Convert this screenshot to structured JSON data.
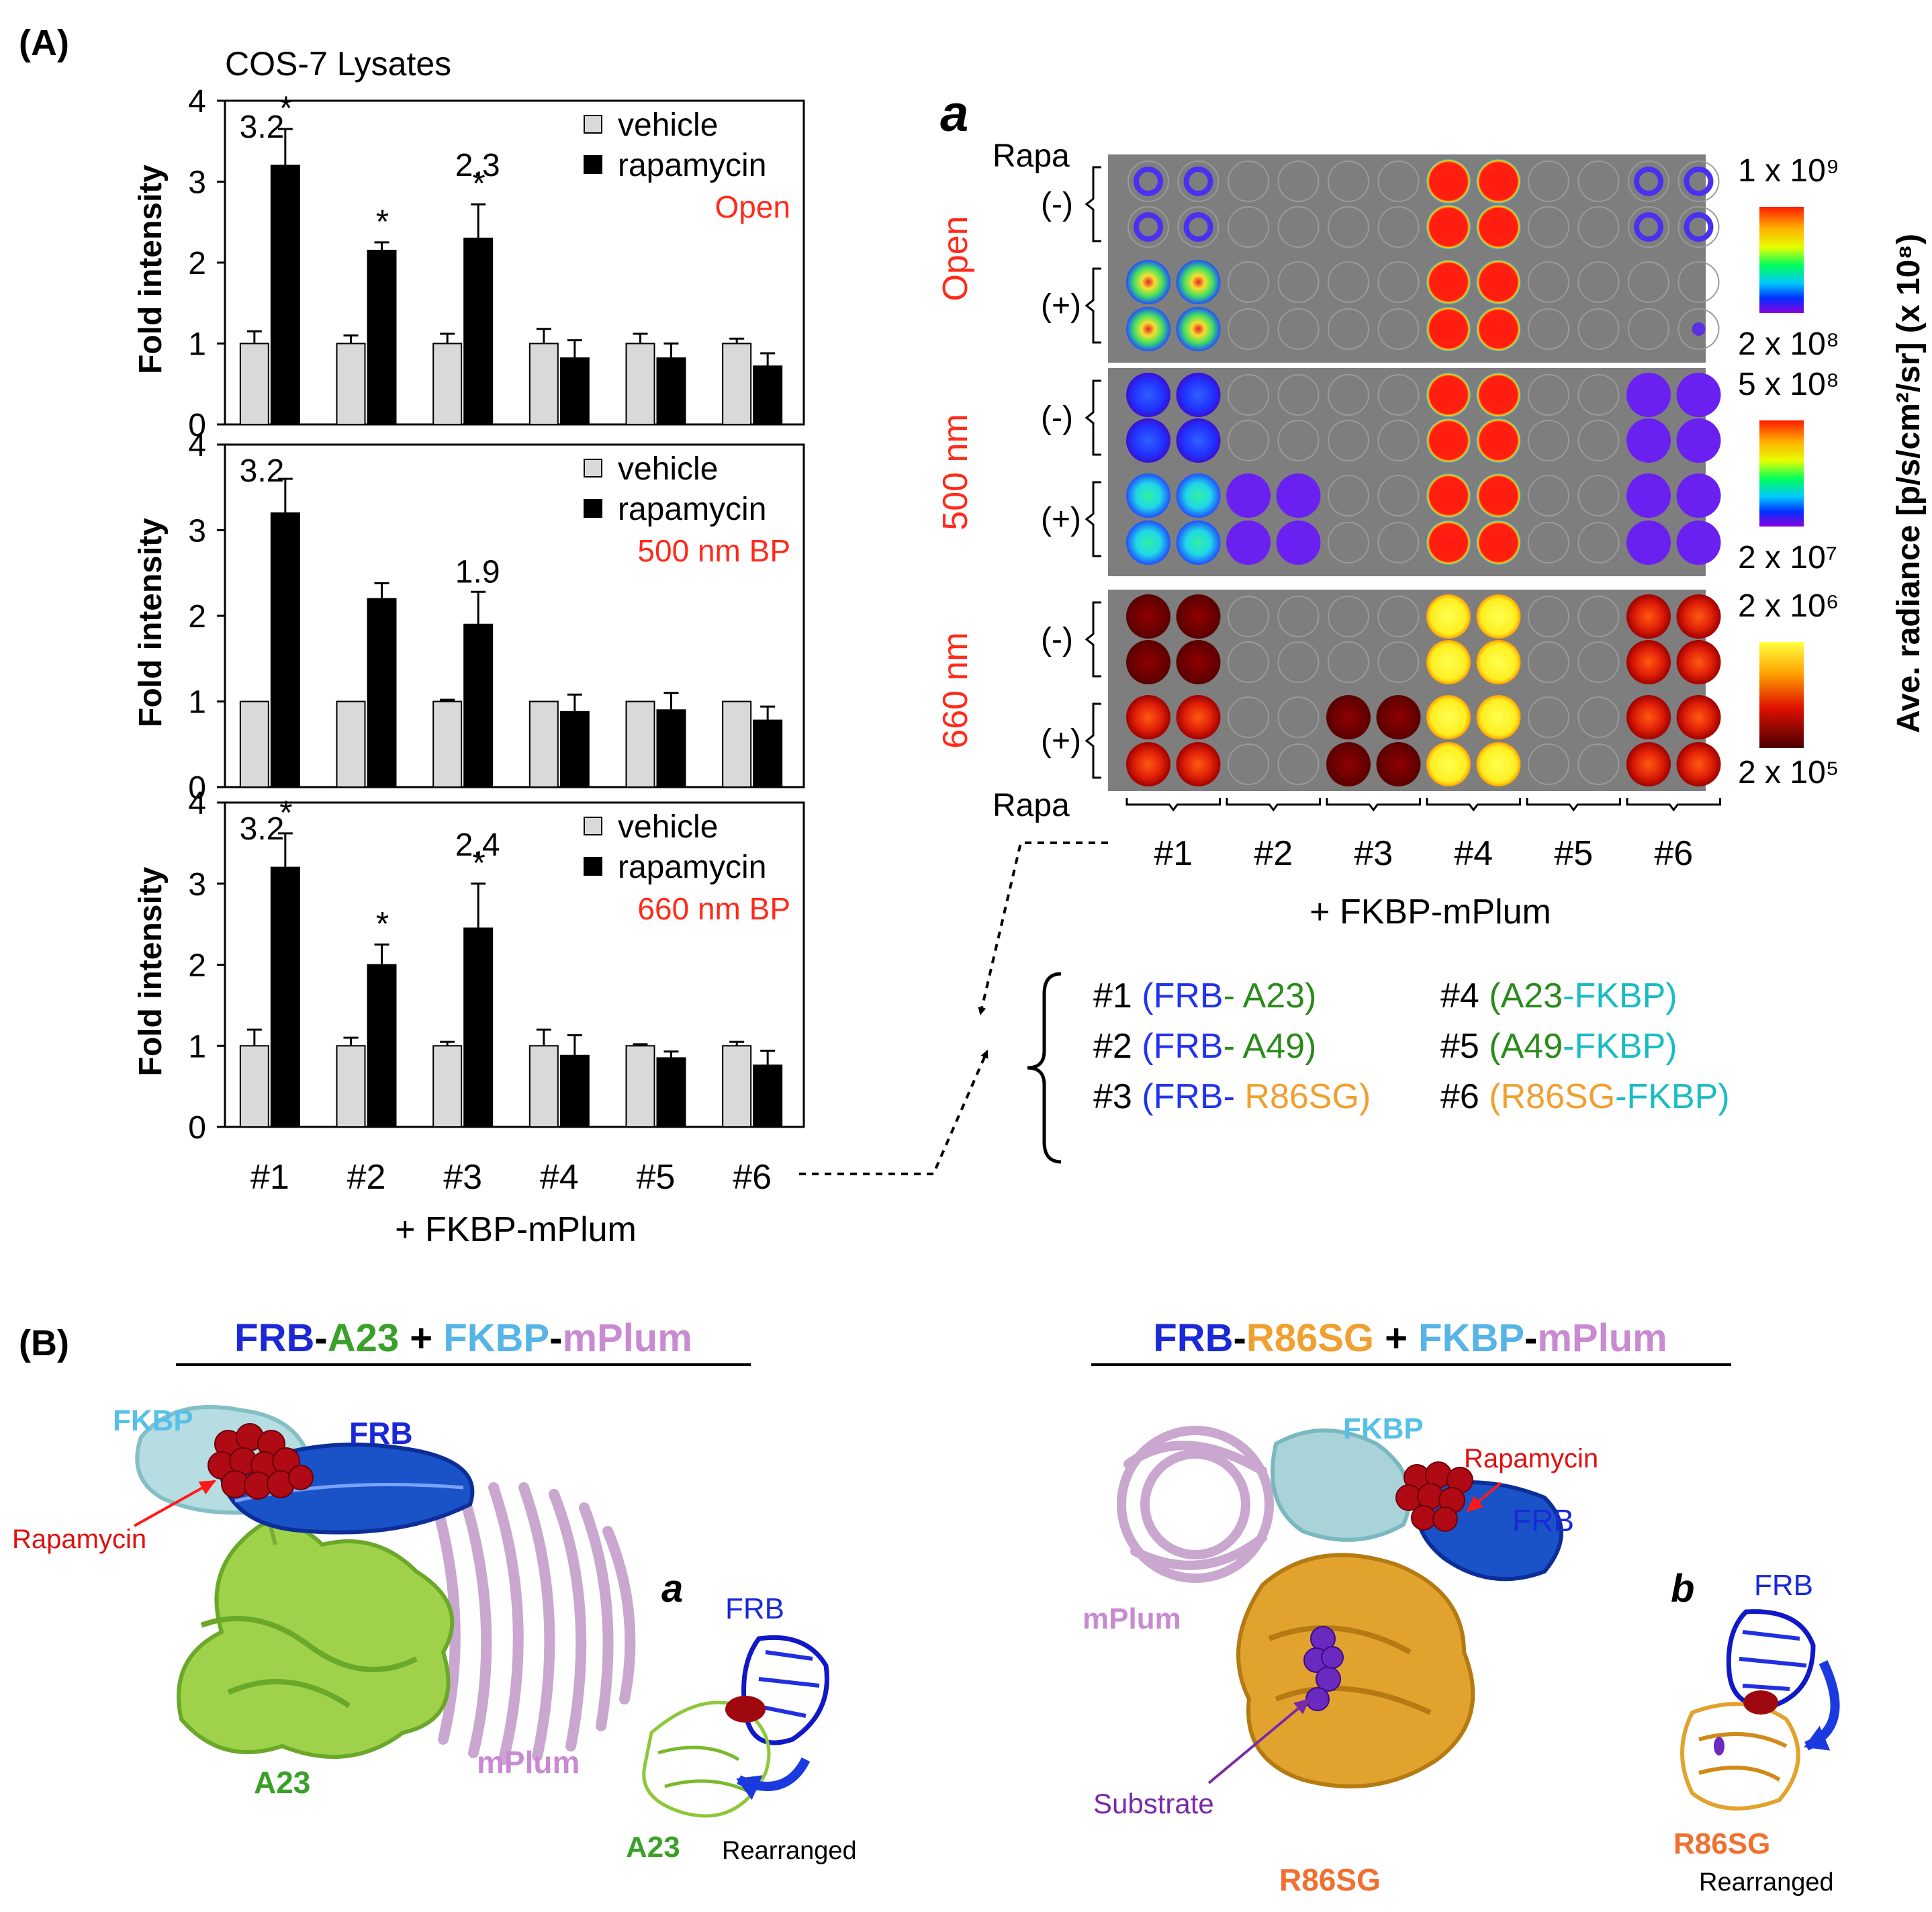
{
  "panel_A": {
    "label": "(A)",
    "title": "COS-7  Lysates",
    "ylabel": "Fold intensity",
    "xlabel": "+ FKBP-mPlum",
    "legend": {
      "vehicle": "vehicle",
      "rapamycin": "rapamycin"
    },
    "colors": {
      "vehicle": "#d9d9d9",
      "rapamycin": "#000000",
      "accent": "#ff2a1a"
    }
  },
  "chart_data": [
    {
      "type": "bar",
      "condition_label": "Open",
      "categories": [
        "#1",
        "#2",
        "#3",
        "#4",
        "#5",
        "#6"
      ],
      "ylim": [
        0,
        4
      ],
      "yticks": [
        0,
        1,
        2,
        3,
        4
      ],
      "series": [
        {
          "name": "vehicle",
          "values": [
            1.0,
            1.0,
            1.0,
            1.0,
            1.0,
            1.0
          ],
          "errors": [
            0.15,
            0.1,
            0.12,
            0.18,
            0.12,
            0.06
          ]
        },
        {
          "name": "rapamycin",
          "values": [
            3.2,
            2.15,
            2.3,
            0.82,
            0.82,
            0.72
          ],
          "errors": [
            0.45,
            0.1,
            0.42,
            0.22,
            0.18,
            0.16
          ]
        }
      ],
      "annotations": [
        {
          "category": "#1",
          "value_label": "3.2",
          "mark": "*"
        },
        {
          "category": "#2",
          "value_label": "",
          "mark": "*"
        },
        {
          "category": "#3",
          "value_label": "2.3",
          "mark": "*"
        }
      ]
    },
    {
      "type": "bar",
      "condition_label": "500 nm BP",
      "categories": [
        "#1",
        "#2",
        "#3",
        "#4",
        "#5",
        "#6"
      ],
      "ylim": [
        0,
        4
      ],
      "yticks": [
        0,
        1,
        2,
        3,
        4
      ],
      "series": [
        {
          "name": "vehicle",
          "values": [
            1.0,
            1.0,
            1.0,
            1.0,
            1.0,
            1.0
          ],
          "errors": [
            0,
            0,
            0.02,
            0,
            0,
            0
          ]
        },
        {
          "name": "rapamycin",
          "values": [
            3.2,
            2.2,
            1.9,
            0.88,
            0.9,
            0.78
          ],
          "errors": [
            0.4,
            0.18,
            0.38,
            0.2,
            0.2,
            0.16
          ]
        }
      ],
      "annotations": [
        {
          "category": "#1",
          "value_label": "3.2",
          "mark": ""
        },
        {
          "category": "#3",
          "value_label": "1.9",
          "mark": ""
        }
      ]
    },
    {
      "type": "bar",
      "condition_label": "660 nm BP",
      "categories": [
        "#1",
        "#2",
        "#3",
        "#4",
        "#5",
        "#6"
      ],
      "ylim": [
        0,
        4
      ],
      "yticks": [
        0,
        1,
        2,
        3,
        4
      ],
      "series": [
        {
          "name": "vehicle",
          "values": [
            1.0,
            1.0,
            1.0,
            1.0,
            1.0,
            1.0
          ],
          "errors": [
            0.2,
            0.1,
            0.05,
            0.2,
            0.02,
            0.05
          ]
        },
        {
          "name": "rapamycin",
          "values": [
            3.2,
            2.0,
            2.45,
            0.88,
            0.85,
            0.76
          ],
          "errors": [
            0.42,
            0.25,
            0.55,
            0.25,
            0.08,
            0.18
          ]
        }
      ],
      "annotations": [
        {
          "category": "#1",
          "value_label": "3.2",
          "mark": "*"
        },
        {
          "category": "#2",
          "value_label": "",
          "mark": "*"
        },
        {
          "category": "#3",
          "value_label": "2.4",
          "mark": "*"
        }
      ]
    }
  ],
  "panel_a": {
    "label": "a",
    "rapa_label": "Rapa",
    "minus": "(-)",
    "plus": "(+)",
    "xlabel": "+ FKBP-mPlum",
    "groups": [
      "#1",
      "#2",
      "#3",
      "#4",
      "#5",
      "#6"
    ],
    "colorbar_title": "Ave. radiance [p/s/cm²/sr] (x 10⁸)",
    "panels": [
      {
        "label": "Open",
        "scale_max": "1 x 10⁹",
        "scale_min": "2 x 10⁸",
        "colormap": "rainbow",
        "wells": {
          "minus": [
            "blue-ring",
            "",
            "",
            "red",
            "",
            "blue-ring"
          ],
          "plus": [
            "yellow-green",
            "",
            "",
            "red",
            "",
            "faint"
          ]
        }
      },
      {
        "label": "500 nm",
        "scale_max": "5 x 10⁸",
        "scale_min": "2 x 10⁷",
        "colormap": "rainbow",
        "wells": {
          "minus": [
            "blue",
            "",
            "",
            "red",
            "",
            "violet"
          ],
          "plus": [
            "cyan",
            "violet",
            "",
            "red",
            "",
            "violet"
          ]
        }
      },
      {
        "label": "660 nm",
        "scale_max": "2 x 10⁶",
        "scale_min": "2 x 10⁵",
        "colormap": "hot",
        "wells": {
          "minus": [
            "dark-red",
            "",
            "",
            "yellow",
            "",
            "red"
          ],
          "plus": [
            "red",
            "",
            "dark-red",
            "yellow",
            "",
            "red"
          ]
        }
      }
    ]
  },
  "construct_key": [
    [
      {
        "text": "#1 ",
        "color": "#000000"
      },
      {
        "text": "(FRB",
        "color": "#2233ee"
      },
      {
        "text": "- A23)",
        "color": "#2a8a1c"
      }
    ],
    [
      {
        "text": "#2 ",
        "color": "#000000"
      },
      {
        "text": "(FRB",
        "color": "#2233ee"
      },
      {
        "text": "- A49)",
        "color": "#2a8a1c"
      }
    ],
    [
      {
        "text": "#3 ",
        "color": "#000000"
      },
      {
        "text": "(FRB",
        "color": "#2233ee"
      },
      {
        "text": "- ",
        "color": "#2233ee"
      },
      {
        "text": "R86SG)",
        "color": "#f0a030"
      }
    ],
    [
      {
        "text": "#4 ",
        "color": "#000000"
      },
      {
        "text": "(A23",
        "color": "#2a8a1c"
      },
      {
        "text": "-FKBP)",
        "color": "#1abcc4"
      }
    ],
    [
      {
        "text": "#5 ",
        "color": "#000000"
      },
      {
        "text": "(A49",
        "color": "#2a8a1c"
      },
      {
        "text": "-FKBP)",
        "color": "#1abcc4"
      }
    ],
    [
      {
        "text": "#6 ",
        "color": "#000000"
      },
      {
        "text": "(R86SG",
        "color": "#f0a030"
      },
      {
        "text": "-FKBP)",
        "color": "#1abcc4"
      }
    ]
  ],
  "panel_B": {
    "label": "(B)",
    "left": {
      "title": [
        {
          "text": "FRB",
          "color": "#1a28d8"
        },
        {
          "text": "-",
          "color": "#000000"
        },
        {
          "text": "A23",
          "color": "#3aa02a"
        },
        {
          "text": " + ",
          "color": "#000000"
        },
        {
          "text": "FKBP",
          "color": "#56b4e6"
        },
        {
          "text": "-",
          "color": "#000000"
        },
        {
          "text": "mPlum",
          "color": "#c88ad0"
        }
      ],
      "labels": {
        "fkbp": "FKBP",
        "frb": "FRB",
        "rapamycin": "Rapamycin",
        "a23": "A23",
        "mplum": "mPlum"
      },
      "inset": {
        "label": "a",
        "frb": "FRB",
        "a23": "A23",
        "note": "Rearranged"
      }
    },
    "right": {
      "title": [
        {
          "text": "FRB",
          "color": "#1a28d8"
        },
        {
          "text": "-",
          "color": "#000000"
        },
        {
          "text": "R86SG",
          "color": "#f0a030"
        },
        {
          "text": " + ",
          "color": "#000000"
        },
        {
          "text": "FKBP",
          "color": "#56b4e6"
        },
        {
          "text": "-",
          "color": "#000000"
        },
        {
          "text": "mPlum",
          "color": "#c88ad0"
        }
      ],
      "labels": {
        "fkbp": "FKBP",
        "rapamycin": "Rapamycin",
        "frb": "FRB",
        "mplum": "mPlum",
        "substrate": "Substrate",
        "r86sg": "R86SG"
      },
      "inset": {
        "label": "b",
        "frb": "FRB",
        "r86sg": "R86SG",
        "note": "Rearranged"
      }
    }
  }
}
